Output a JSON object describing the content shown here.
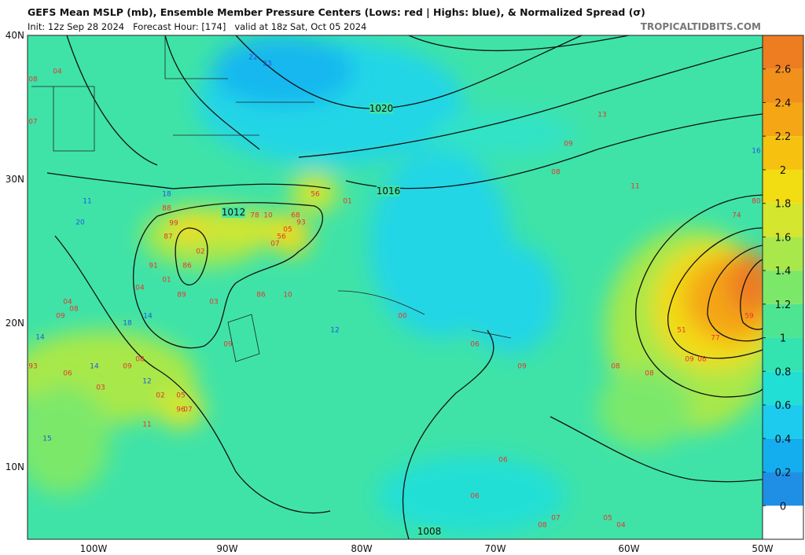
{
  "header": {
    "title": "GEFS Mean MSLP (mb), Ensemble Member Pressure Centers (Lows: red | Highs: blue), & Normalized Spread (σ)",
    "subtitle": "Init: 12z Sep 28 2024   Forecast Hour: [174]   valid at 18z Sat, Oct 05 2024",
    "credit": "TROPICALTIDBITS.COM"
  },
  "map": {
    "lat_labels": [
      "40N",
      "30N",
      "20N",
      "10N"
    ],
    "lon_labels": [
      "100W",
      "90W",
      "80W",
      "70W",
      "60W",
      "50W"
    ],
    "isobar_labels": [
      "1020",
      "1016",
      "1012",
      "1008"
    ],
    "lows": [
      "08",
      "04",
      "07",
      "88",
      "99",
      "87",
      "02",
      "91",
      "86",
      "01",
      "89",
      "04",
      "03",
      "86",
      "10",
      "78",
      "10",
      "05",
      "56",
      "07",
      "93",
      "68",
      "56",
      "01",
      "09",
      "13",
      "08",
      "11",
      "74",
      "80",
      "51",
      "77",
      "59",
      "09",
      "08",
      "08",
      "08",
      "09",
      "06",
      "03",
      "09",
      "08",
      "02",
      "05",
      "96",
      "07",
      "11",
      "93",
      "04",
      "09",
      "08",
      "00",
      "06",
      "09",
      "06",
      "08",
      "07",
      "05",
      "04",
      "06"
    ],
    "highs": [
      "18",
      "11",
      "20",
      "14",
      "18",
      "14",
      "14",
      "12",
      "15",
      "12",
      "16",
      "23",
      "22"
    ],
    "colorbar": {
      "clim": [
        -0.2,
        2.8
      ],
      "ticks": [
        0,
        0.2,
        0.4,
        0.6,
        0.8,
        1,
        1.2,
        1.4,
        1.6,
        1.8,
        2,
        2.2,
        2.4,
        2.6
      ],
      "colors": [
        "#ffffff",
        "#1f8fe6",
        "#14aeef",
        "#1ccbee",
        "#22dfd6",
        "#33e3b0",
        "#4ee592",
        "#7ce86a",
        "#a8e84a",
        "#d4e62e",
        "#f2dc12",
        "#f6c20f",
        "#f4a614",
        "#f1901b",
        "#ee7c20"
      ]
    }
  }
}
